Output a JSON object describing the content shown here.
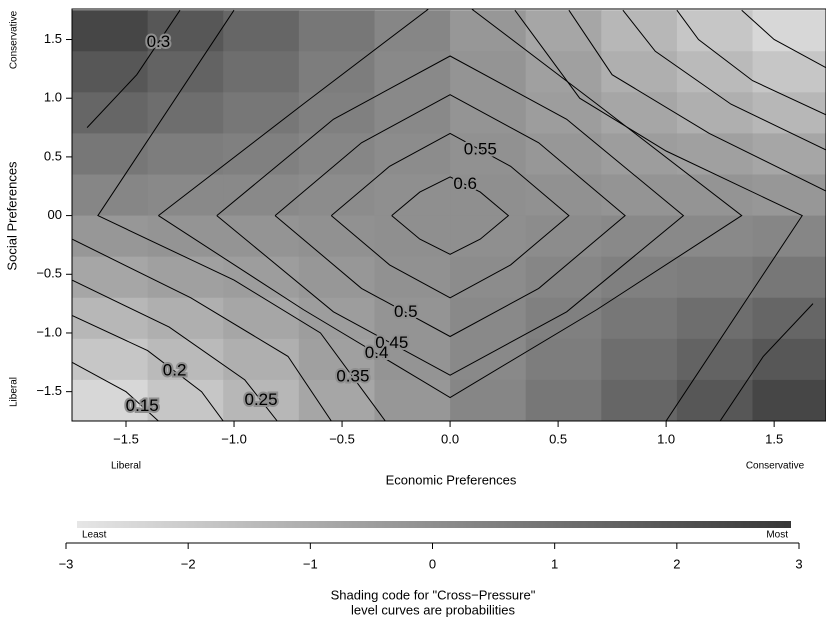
{
  "chart_data": {
    "type": "contour",
    "xlabel": "Economic Preferences",
    "ylabel": "Social Preferences",
    "x_low_label": "Liberal",
    "x_high_label": "Conservative",
    "y_low_label": "Liberal",
    "y_high_label": "Conservative",
    "xlim": [
      -1.75,
      1.74
    ],
    "ylim": [
      -1.75,
      1.76
    ],
    "xticks": [
      {
        "value": -1.5,
        "label": "−1.5"
      },
      {
        "value": -1,
        "label": "−1.0"
      },
      {
        "value": -0.5,
        "label": "−0.5"
      },
      {
        "value": 0,
        "label": "0.0"
      },
      0.5,
      {
        "value": 1,
        "label": "1.0"
      },
      1.5
    ],
    "yticks": [
      {
        "value": -1.5,
        "label": "−1.5"
      },
      {
        "value": -1,
        "label": "−1.0"
      },
      {
        "value": -0.5,
        "label": "−0.5"
      },
      {
        "value": 0,
        "label": "00"
      },
      0.5,
      {
        "value": 1,
        "label": "1.0"
      },
      1.5
    ],
    "x": [
      -1.575,
      -1.225,
      -0.875,
      -0.525,
      -0.175,
      0.175,
      0.525,
      0.875,
      1.225,
      1.575
    ],
    "y": [
      1.575,
      1.225,
      0.875,
      0.525,
      0.175,
      -0.175,
      -0.525,
      -0.875,
      -1.225,
      -1.575
    ],
    "z": [
      [
        2.5,
        1.9,
        1.4,
        0.8,
        0.3,
        -0.3,
        -0.8,
        -1.4,
        -1.9,
        -2.5
      ],
      [
        1.9,
        1.5,
        1.1,
        0.6,
        0.2,
        -0.2,
        -0.6,
        -1.1,
        -1.5,
        -1.9
      ],
      [
        1.4,
        1.1,
        0.8,
        0.5,
        0.2,
        -0.2,
        -0.5,
        -0.8,
        -1.1,
        -1.4
      ],
      [
        0.8,
        0.6,
        0.5,
        0.3,
        0.1,
        -0.1,
        -0.3,
        -0.5,
        -0.6,
        -0.8
      ],
      [
        0.3,
        0.2,
        0.2,
        0.1,
        0.0,
        0.0,
        -0.1,
        -0.2,
        -0.2,
        -0.3
      ],
      [
        -0.3,
        -0.2,
        -0.2,
        -0.1,
        0.0,
        0.0,
        0.1,
        0.2,
        0.2,
        0.3
      ],
      [
        -0.8,
        -0.6,
        -0.5,
        -0.3,
        -0.1,
        0.1,
        0.3,
        0.5,
        0.6,
        0.8
      ],
      [
        -1.4,
        -1.1,
        -0.8,
        -0.5,
        -0.2,
        0.2,
        0.5,
        0.8,
        1.1,
        1.4
      ],
      [
        -1.9,
        -1.5,
        -1.1,
        -0.6,
        -0.2,
        0.2,
        0.6,
        1.1,
        1.5,
        1.9
      ],
      [
        -2.5,
        -1.9,
        -1.4,
        -0.8,
        -0.3,
        0.3,
        0.8,
        1.4,
        1.9,
        2.5
      ]
    ],
    "contours": [
      {
        "level": 0.6,
        "x": [
          -0.27,
          -0.14,
          0,
          0.14,
          0.27,
          0.14,
          0,
          -0.14,
          -0.27
        ],
        "y": [
          0,
          0.2,
          0.33,
          0.2,
          0,
          -0.2,
          -0.33,
          -0.2,
          0
        ]
      },
      {
        "level": 0.55,
        "x": [
          -0.55,
          -0.28,
          0,
          0.28,
          0.55,
          0.28,
          0,
          -0.28,
          -0.55
        ],
        "y": [
          0,
          0.42,
          0.7,
          0.42,
          0,
          -0.42,
          -0.7,
          -0.42,
          0
        ]
      },
      {
        "level": 0.5,
        "x": [
          -0.81,
          -0.41,
          0,
          0.41,
          0.81,
          0.41,
          0,
          -0.41,
          -0.81
        ],
        "y": [
          0,
          0.62,
          1.03,
          0.62,
          0,
          -0.62,
          -1.03,
          -0.62,
          0
        ]
      },
      {
        "level": 0.45,
        "x": [
          -1.08,
          -0.54,
          0,
          0.54,
          1.08,
          0.54,
          0,
          -0.54,
          -1.08
        ],
        "y": [
          0,
          0.82,
          1.36,
          0.82,
          0,
          -0.82,
          -1.36,
          -0.82,
          0
        ]
      },
      {
        "level": 0.4,
        "x": [
          -1.35,
          -0.68,
          0,
          0.68,
          1.35,
          0.68,
          0,
          -0.68,
          -1.35
        ],
        "y": [
          0,
          0.95,
          1.9,
          0.95,
          0,
          -0.8,
          -1.55,
          -0.8,
          0
        ]
      },
      {
        "level": 0.35,
        "x": [
          -1.0,
          -1.63,
          -1.0,
          -0.6,
          -0.3,
          null,
          1.0,
          1.63,
          1.0,
          0.6,
          0.3
        ],
        "y": [
          1.75,
          0,
          -0.55,
          -1.0,
          -1.75,
          null,
          -1.75,
          0,
          0.55,
          1.0,
          1.75
        ]
      },
      {
        "level": 0.3,
        "x": [
          -1.68,
          -1.45,
          -1.25,
          null,
          -1.75,
          -1.2,
          -0.75,
          -0.55,
          null,
          1.75,
          1.2,
          0.75,
          0.55,
          null,
          1.68,
          1.45,
          1.25
        ],
        "y": [
          0.75,
          1.2,
          1.75,
          null,
          -0.2,
          -0.7,
          -1.2,
          -1.75,
          null,
          0.2,
          0.7,
          1.2,
          1.75,
          null,
          -0.75,
          -1.2,
          -1.75
        ]
      },
      {
        "level": 0.25,
        "x": [
          -1.75,
          -1.3,
          -0.95,
          -0.8,
          null,
          1.75,
          1.3,
          0.95,
          0.8
        ],
        "y": [
          -0.55,
          -0.95,
          -1.4,
          -1.75,
          null,
          0.55,
          0.95,
          1.4,
          1.75
        ]
      },
      {
        "level": 0.2,
        "x": [
          -1.75,
          -1.4,
          -1.15,
          -1.05,
          null,
          1.75,
          1.4,
          1.15,
          1.05
        ],
        "y": [
          -0.85,
          -1.15,
          -1.5,
          -1.75,
          null,
          0.85,
          1.15,
          1.5,
          1.75
        ]
      },
      {
        "level": 0.15,
        "x": [
          -1.75,
          -1.5,
          -1.35,
          null,
          1.75,
          1.5,
          1.35
        ],
        "y": [
          -1.25,
          -1.5,
          -1.75,
          null,
          1.25,
          1.5,
          1.75
        ]
      }
    ],
    "colorbar": {
      "lim": [
        -3,
        3
      ],
      "ticks": [
        {
          "value": -3,
          "label": "−3"
        },
        {
          "value": -2,
          "label": "−2"
        },
        {
          "value": -1,
          "label": "−1"
        },
        0,
        1,
        2,
        3
      ],
      "low_label": "Least",
      "high_label": "Most",
      "title": [
        "Shading code for \"Cross−Pressure\"",
        "level curves are probabilities"
      ]
    }
  }
}
